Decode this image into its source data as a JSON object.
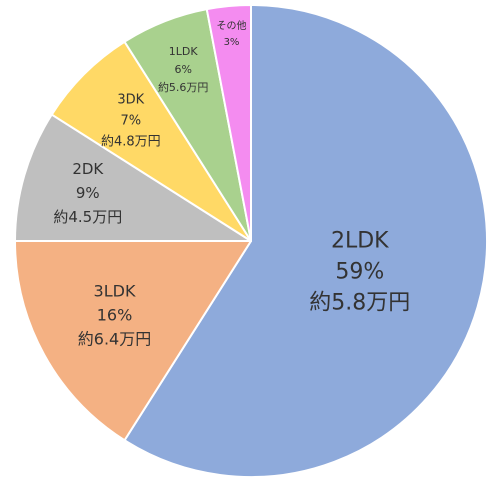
{
  "chart_data": {
    "type": "pie",
    "title": "",
    "slices": [
      {
        "name": "2LDK",
        "percent": 59,
        "percent_label": "59%",
        "value_label": "約5.8万円",
        "color": "#8eaadb"
      },
      {
        "name": "3LDK",
        "percent": 16,
        "percent_label": "16%",
        "value_label": "約6.4万円",
        "color": "#f4b183"
      },
      {
        "name": "2DK",
        "percent": 9,
        "percent_label": "9%",
        "value_label": "約4.5万円",
        "color": "#bfbfbf"
      },
      {
        "name": "3DK",
        "percent": 7,
        "percent_label": "7%",
        "value_label": "約4.8万円",
        "color": "#ffd966"
      },
      {
        "name": "1LDK",
        "percent": 6,
        "percent_label": "6%",
        "value_label": "約5.6万円",
        "color": "#a9d18e"
      },
      {
        "name": "その他",
        "percent": 3,
        "percent_label": "3%",
        "value_label": "",
        "color": "#f48cf0"
      }
    ]
  }
}
